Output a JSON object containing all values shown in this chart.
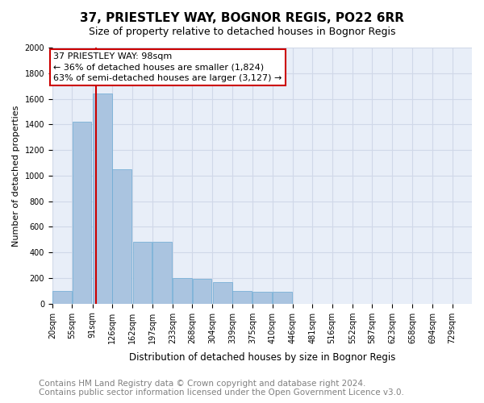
{
  "title": "37, PRIESTLEY WAY, BOGNOR REGIS, PO22 6RR",
  "subtitle": "Size of property relative to detached houses in Bognor Regis",
  "xlabel": "Distribution of detached houses by size in Bognor Regis",
  "ylabel": "Number of detached properties",
  "footnote1": "Contains HM Land Registry data © Crown copyright and database right 2024.",
  "footnote2": "Contains public sector information licensed under the Open Government Licence v3.0.",
  "annotation_line1": "37 PRIESTLEY WAY: 98sqm",
  "annotation_line2": "← 36% of detached houses are smaller (1,824)",
  "annotation_line3": "63% of semi-detached houses are larger (3,127) →",
  "property_size": 98,
  "bin_labels": [
    "20sqm",
    "55sqm",
    "91sqm",
    "126sqm",
    "162sqm",
    "197sqm",
    "233sqm",
    "268sqm",
    "304sqm",
    "339sqm",
    "375sqm",
    "410sqm",
    "446sqm",
    "481sqm",
    "516sqm",
    "552sqm",
    "587sqm",
    "623sqm",
    "658sqm",
    "694sqm",
    "729sqm"
  ],
  "bin_edges": [
    20,
    55,
    91,
    126,
    162,
    197,
    233,
    268,
    304,
    339,
    375,
    410,
    446,
    481,
    516,
    552,
    587,
    623,
    658,
    694,
    729
  ],
  "bar_heights": [
    100,
    1420,
    1640,
    1050,
    480,
    480,
    200,
    195,
    170,
    100,
    90,
    90,
    0,
    0,
    0,
    0,
    0,
    0,
    0,
    0
  ],
  "bar_color": "#aac4e0",
  "bar_edge_color": "#6aaad4",
  "grid_color": "#d0d8e8",
  "background_color": "#e8eef8",
  "vline_x": 98,
  "vline_color": "#cc0000",
  "ylim": [
    0,
    2000
  ],
  "yticks": [
    0,
    200,
    400,
    600,
    800,
    1000,
    1200,
    1400,
    1600,
    1800,
    2000
  ],
  "title_fontsize": 11,
  "subtitle_fontsize": 9,
  "annotation_fontsize": 8,
  "footnote_fontsize": 7.5,
  "tick_fontsize": 7
}
